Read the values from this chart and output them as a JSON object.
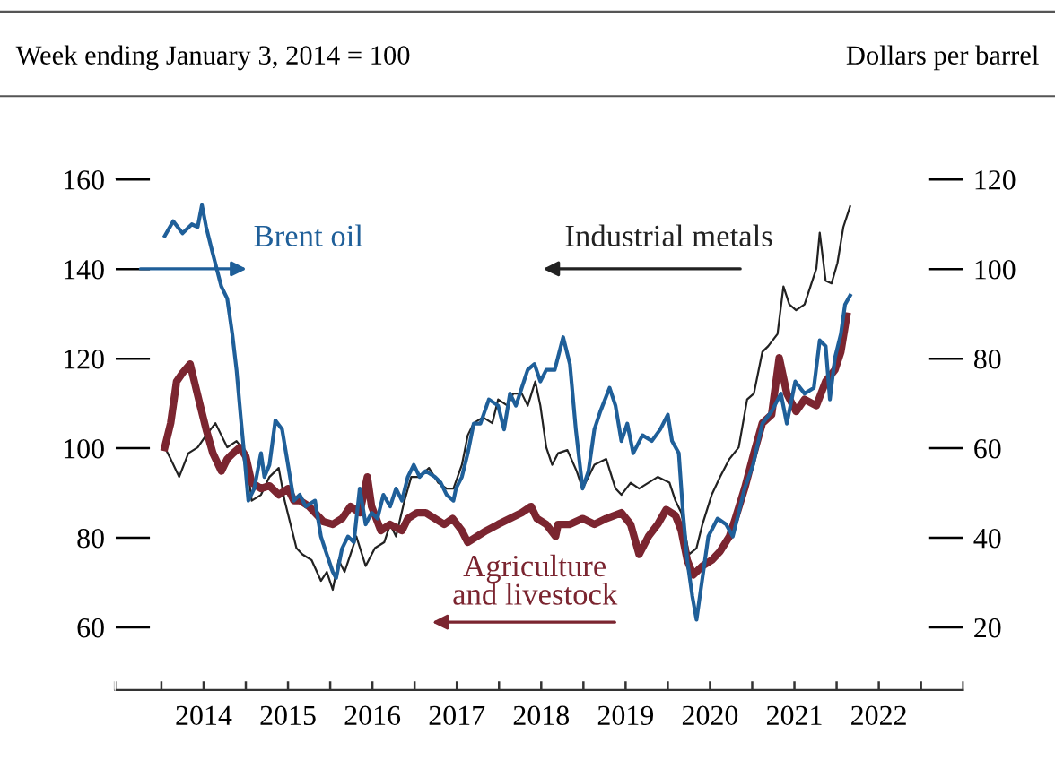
{
  "chart_data": {
    "type": "line",
    "ylabel": "Week ending January 3, 2014 = 100",
    "y2label": "Dollars per barrel",
    "xlim": [
      2013.45,
      2023.5
    ],
    "xticks": [
      {
        "value": 2013.45,
        "label": null
      },
      {
        "value": 2014,
        "label": null
      },
      {
        "value": 2014.5,
        "label": "2014"
      },
      {
        "value": 2015,
        "label": null
      },
      {
        "value": 2015.5,
        "label": "2015"
      },
      {
        "value": 2016,
        "label": null
      },
      {
        "value": 2016.5,
        "label": "2016"
      },
      {
        "value": 2017,
        "label": null
      },
      {
        "value": 2017.5,
        "label": "2017"
      },
      {
        "value": 2018,
        "label": null
      },
      {
        "value": 2018.5,
        "label": "2018"
      },
      {
        "value": 2019,
        "label": null
      },
      {
        "value": 2019.5,
        "label": "2019"
      },
      {
        "value": 2020,
        "label": null
      },
      {
        "value": 2020.5,
        "label": "2020"
      },
      {
        "value": 2021,
        "label": null
      },
      {
        "value": 2021.5,
        "label": "2021"
      },
      {
        "value": 2022,
        "label": null
      },
      {
        "value": 2022.5,
        "label": "2022"
      },
      {
        "value": 2023,
        "label": null
      },
      {
        "value": 2023.5,
        "label": null
      }
    ],
    "ylim": [
      46,
      160
    ],
    "yticks": [
      60,
      80,
      100,
      120,
      140,
      160
    ],
    "y2lim": [
      6,
      120
    ],
    "y2ticks": [
      20,
      40,
      60,
      80,
      100,
      120
    ],
    "grid": false,
    "series": [
      {
        "name": "Industrial metals",
        "color": "#222222",
        "x": [
          2014.04,
          2014.11,
          2014.21,
          2014.32,
          2014.43,
          2014.53,
          2014.64,
          2014.71,
          2014.78,
          2014.89,
          2015.0,
          2015.07,
          2015.18,
          2015.28,
          2015.39,
          2015.46,
          2015.53,
          2015.6,
          2015.67,
          2015.78,
          2015.89,
          2015.96,
          2016.03,
          2016.1,
          2016.17,
          2016.24,
          2016.31,
          2016.42,
          2016.53,
          2016.64,
          2016.71,
          2016.78,
          2016.88,
          2016.96,
          2017.06,
          2017.17,
          2017.28,
          2017.38,
          2017.46,
          2017.56,
          2017.63,
          2017.7,
          2017.81,
          2017.92,
          2017.99,
          2018.1,
          2018.17,
          2018.27,
          2018.34,
          2018.43,
          2018.49,
          2018.56,
          2018.63,
          2018.7,
          2018.81,
          2018.92,
          2018.99,
          2019.06,
          2019.13,
          2019.27,
          2019.38,
          2019.45,
          2019.56,
          2019.66,
          2019.77,
          2019.88,
          2020.02,
          2020.09,
          2020.16,
          2020.25,
          2020.34,
          2020.41,
          2020.52,
          2020.62,
          2020.73,
          2020.84,
          2020.94,
          2021.02,
          2021.12,
          2021.19,
          2021.3,
          2021.37,
          2021.44,
          2021.52,
          2021.62,
          2021.69,
          2021.76,
          2021.8,
          2021.87,
          2021.94,
          2022.01,
          2022.08,
          2022.16
        ],
        "values": [
          100.2,
          97.6,
          93.6,
          98.9,
          100.2,
          102.9,
          105.6,
          102.9,
          100.2,
          101.6,
          98.9,
          88.3,
          89.6,
          93.6,
          95.6,
          88.3,
          83.0,
          77.7,
          76.3,
          75.0,
          70.4,
          72.4,
          68.4,
          75.0,
          72.4,
          76.3,
          80.3,
          73.7,
          77.7,
          79.0,
          83.0,
          80.3,
          88.3,
          93.6,
          93.6,
          95.6,
          92.3,
          91.0,
          91.0,
          96.3,
          102.9,
          105.6,
          106.9,
          105.6,
          110.9,
          109.5,
          112.2,
          112.2,
          109.5,
          114.9,
          109.5,
          100.2,
          96.3,
          98.9,
          99.6,
          94.9,
          91.0,
          93.6,
          96.3,
          97.6,
          91.0,
          89.6,
          92.3,
          91.0,
          92.3,
          93.6,
          92.3,
          88.3,
          85.6,
          76.3,
          77.7,
          83.0,
          89.6,
          93.6,
          97.6,
          100.2,
          110.9,
          112.2,
          121.5,
          122.8,
          125.5,
          136.1,
          132.1,
          130.8,
          132.1,
          136.1,
          140.1,
          148.1,
          137.4,
          136.8,
          141.4,
          149.4,
          154.0
        ]
      },
      {
        "name": "Brent oil",
        "color": "#1f5f99",
        "axis": "y2",
        "x": [
          2014.04,
          2014.14,
          2014.25,
          2014.36,
          2014.43,
          2014.48,
          2014.53,
          2014.6,
          2014.71,
          2014.78,
          2014.84,
          2014.89,
          2014.94,
          2014.98,
          2015.03,
          2015.1,
          2015.18,
          2015.22,
          2015.28,
          2015.35,
          2015.43,
          2015.5,
          2015.57,
          2015.64,
          2015.71,
          2015.82,
          2015.89,
          2015.96,
          2016.03,
          2016.07,
          2016.14,
          2016.21,
          2016.28,
          2016.35,
          2016.42,
          2016.49,
          2016.56,
          2016.63,
          2016.71,
          2016.78,
          2016.85,
          2016.92,
          2016.99,
          2017.06,
          2017.13,
          2017.24,
          2017.31,
          2017.38,
          2017.46,
          2017.49,
          2017.56,
          2017.63,
          2017.7,
          2017.78,
          2017.88,
          2017.99,
          2018.06,
          2018.13,
          2018.2,
          2018.27,
          2018.34,
          2018.42,
          2018.49,
          2018.56,
          2018.66,
          2018.76,
          2018.84,
          2018.91,
          2018.99,
          2019.06,
          2019.13,
          2019.2,
          2019.31,
          2019.38,
          2019.45,
          2019.52,
          2019.59,
          2019.7,
          2019.81,
          2019.91,
          2020.0,
          2020.05,
          2020.13,
          2020.18,
          2020.23,
          2020.29,
          2020.34,
          2020.4,
          2020.48,
          2020.59,
          2020.69,
          2020.77,
          2020.84,
          2020.91,
          2021.01,
          2021.12,
          2021.23,
          2021.34,
          2021.41,
          2021.51,
          2021.62,
          2021.73,
          2021.8,
          2021.87,
          2021.92,
          2021.98,
          2022.05,
          2022.1,
          2022.16
        ],
        "values": [
          107.4,
          110.7,
          108.0,
          110.0,
          109.4,
          114.3,
          109.4,
          104.1,
          96.1,
          93.4,
          85.5,
          77.5,
          66.9,
          58.9,
          48.3,
          51.0,
          58.9,
          53.6,
          56.3,
          66.2,
          64.2,
          56.3,
          48.3,
          49.6,
          47.0,
          48.3,
          40.3,
          36.3,
          32.4,
          31.0,
          37.6,
          40.3,
          39.0,
          51.0,
          43.0,
          45.6,
          44.3,
          49.6,
          47.0,
          51.0,
          48.3,
          53.6,
          56.3,
          53.6,
          54.9,
          53.6,
          52.3,
          49.6,
          48.3,
          51.0,
          53.6,
          58.9,
          65.5,
          65.5,
          70.9,
          69.5,
          64.2,
          72.2,
          69.5,
          73.5,
          77.5,
          78.8,
          74.9,
          77.5,
          77.5,
          84.8,
          78.8,
          64.2,
          51.0,
          54.9,
          64.2,
          68.2,
          73.5,
          69.5,
          61.6,
          65.5,
          58.9,
          62.9,
          61.6,
          64.2,
          67.5,
          61.6,
          58.9,
          45.6,
          35.0,
          27.0,
          21.7,
          29.7,
          40.3,
          44.3,
          43.0,
          40.3,
          45.6,
          51.0,
          56.3,
          65.5,
          68.2,
          72.2,
          65.5,
          74.9,
          72.2,
          73.5,
          84.1,
          82.8,
          70.9,
          80.2,
          85.5,
          92.1,
          94.1
        ]
      },
      {
        "name": "Agriculture\nand livestock",
        "color": "#7b2530",
        "x": [
          2014.04,
          2014.11,
          2014.18,
          2014.25,
          2014.34,
          2014.39,
          2014.46,
          2014.53,
          2014.61,
          2014.71,
          2014.78,
          2014.85,
          2014.93,
          2015.0,
          2015.07,
          2015.18,
          2015.28,
          2015.39,
          2015.5,
          2015.57,
          2015.64,
          2015.75,
          2015.82,
          2015.92,
          2016.03,
          2016.14,
          2016.24,
          2016.35,
          2016.44,
          2016.49,
          2016.6,
          2016.71,
          2016.85,
          2016.92,
          2017.03,
          2017.13,
          2017.24,
          2017.35,
          2017.45,
          2017.56,
          2017.63,
          2017.74,
          2017.85,
          2017.99,
          2018.13,
          2018.27,
          2018.38,
          2018.45,
          2018.56,
          2018.67,
          2018.7,
          2018.84,
          2018.99,
          2019.13,
          2019.27,
          2019.45,
          2019.56,
          2019.66,
          2019.77,
          2019.88,
          2019.98,
          2020.09,
          2020.16,
          2020.23,
          2020.3,
          2020.41,
          2020.52,
          2020.62,
          2020.73,
          2020.8,
          2020.91,
          2021.02,
          2021.12,
          2021.23,
          2021.32,
          2021.41,
          2021.52,
          2021.62,
          2021.76,
          2021.87,
          2021.98,
          2022.05,
          2022.12
        ],
        "values": [
          100.2,
          105.6,
          114.9,
          116.8,
          118.8,
          114.9,
          109.5,
          104.2,
          98.9,
          94.9,
          97.6,
          98.9,
          100.2,
          98.2,
          92.3,
          91.0,
          91.6,
          89.6,
          91.0,
          88.3,
          88.3,
          87.0,
          85.6,
          83.6,
          83.0,
          84.3,
          87.0,
          85.6,
          93.6,
          87.0,
          81.6,
          83.0,
          81.6,
          84.3,
          85.6,
          85.6,
          84.3,
          83.0,
          84.3,
          81.6,
          79.0,
          80.3,
          81.6,
          83.0,
          84.3,
          85.6,
          87.0,
          84.3,
          83.0,
          80.3,
          83.0,
          83.0,
          84.3,
          83.0,
          84.3,
          85.6,
          83.0,
          76.3,
          80.3,
          83.0,
          86.3,
          85.0,
          81.6,
          75.0,
          71.7,
          73.7,
          75.0,
          77.0,
          80.3,
          84.3,
          91.0,
          98.9,
          105.6,
          107.5,
          120.2,
          112.2,
          108.2,
          110.9,
          109.5,
          114.9,
          117.5,
          121.5,
          129.5
        ]
      }
    ]
  }
}
